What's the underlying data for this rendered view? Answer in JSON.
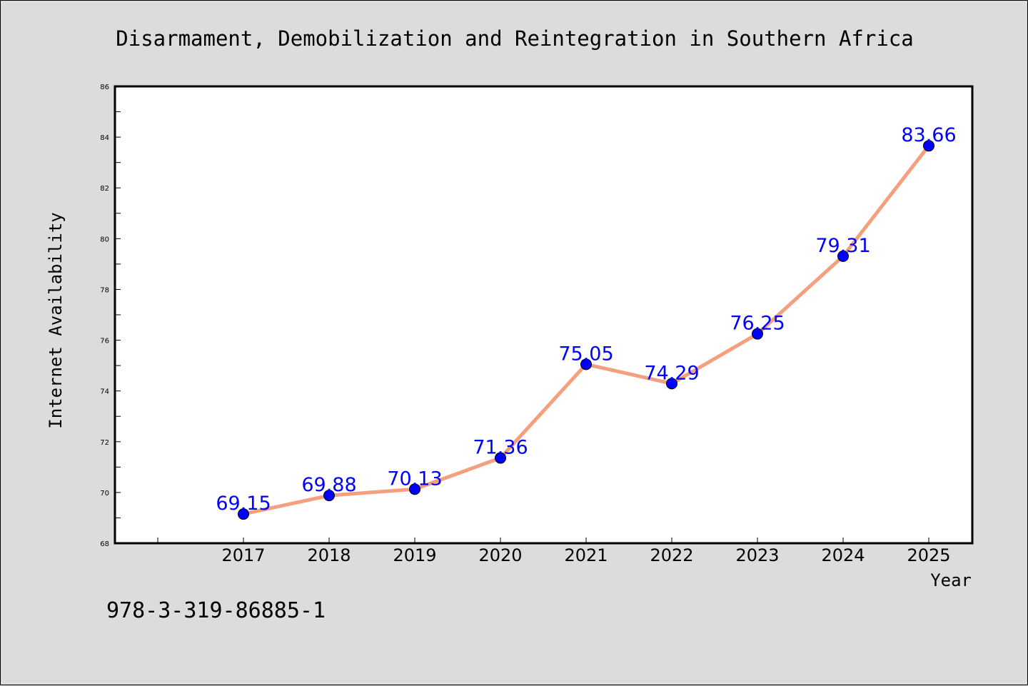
{
  "chart_data": {
    "type": "line",
    "title": "Disarmament, Demobilization and Reintegration in Southern Africa",
    "xlabel": "Year",
    "ylabel": "Internet Availability",
    "categories": [
      "2017",
      "2018",
      "2019",
      "2020",
      "2021",
      "2022",
      "2023",
      "2024",
      "2025"
    ],
    "values": [
      69.15,
      69.88,
      70.13,
      71.36,
      75.05,
      74.29,
      76.25,
      79.31,
      83.66
    ],
    "ylim": [
      68,
      86
    ],
    "yticks": [
      "68",
      "70",
      "72",
      "74",
      "76",
      "78",
      "80",
      "82",
      "84",
      "86"
    ],
    "grid": false,
    "colors": {
      "line": "#f4a07e",
      "marker": "#0000ff",
      "label": "#0000ff",
      "background": "#dcdcdc",
      "plot_background": "#ffffff"
    }
  },
  "footer_text": "978-3-319-86885-1"
}
